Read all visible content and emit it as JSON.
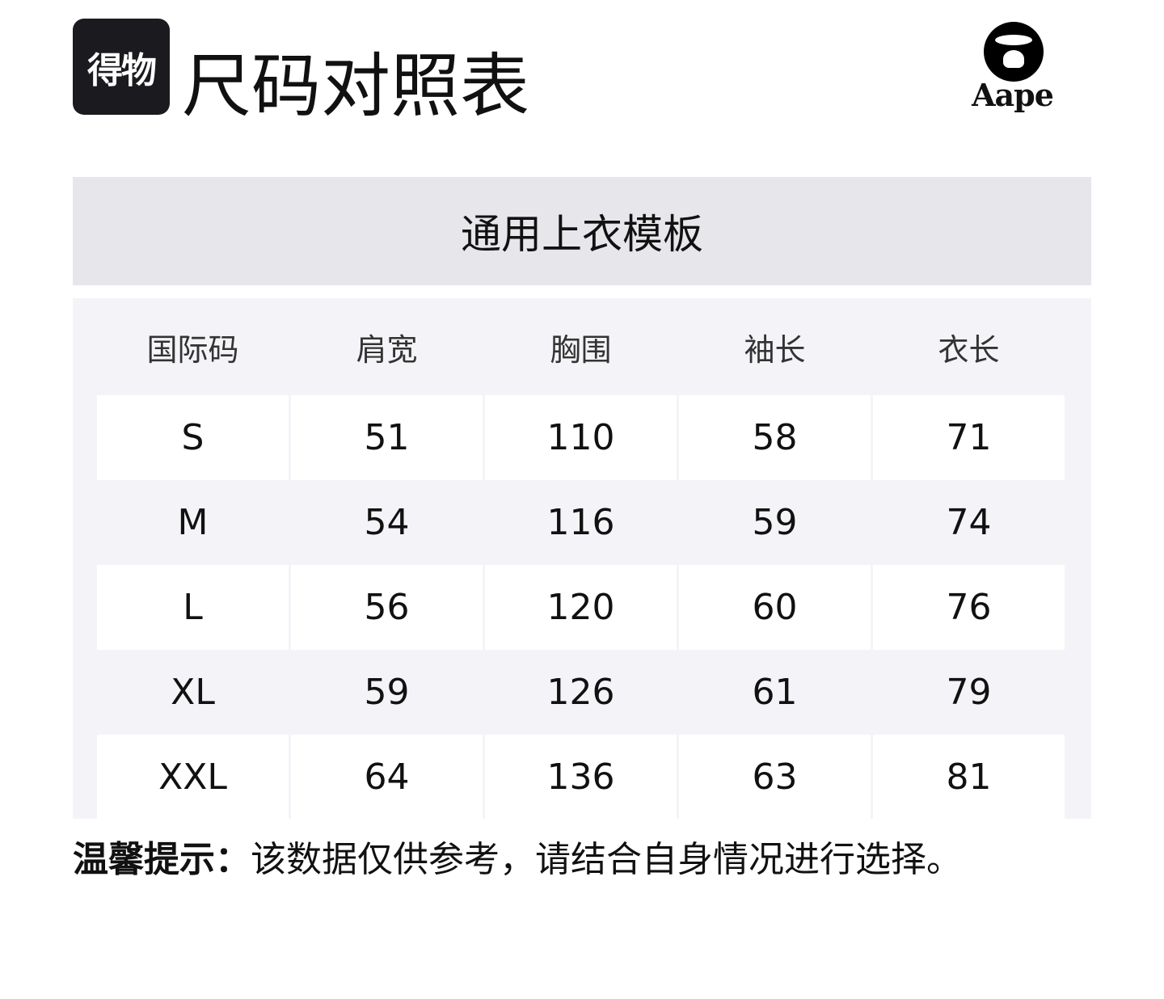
{
  "header": {
    "logo_text": "得物",
    "title": "尺码对照表",
    "brand_logo_text": "Aape"
  },
  "table": {
    "title": "通用上衣模板",
    "columns": [
      "国际码",
      "肩宽",
      "胸围",
      "袖长",
      "衣长"
    ],
    "rows": [
      [
        "S",
        "51",
        "110",
        "58",
        "71"
      ],
      [
        "M",
        "54",
        "116",
        "59",
        "74"
      ],
      [
        "L",
        "56",
        "120",
        "60",
        "76"
      ],
      [
        "XL",
        "59",
        "126",
        "61",
        "79"
      ],
      [
        "XXL",
        "64",
        "136",
        "63",
        "81"
      ]
    ]
  },
  "note": {
    "label": "温馨提示：",
    "text": "该数据仅供参考，请结合自身情况进行选择。"
  }
}
